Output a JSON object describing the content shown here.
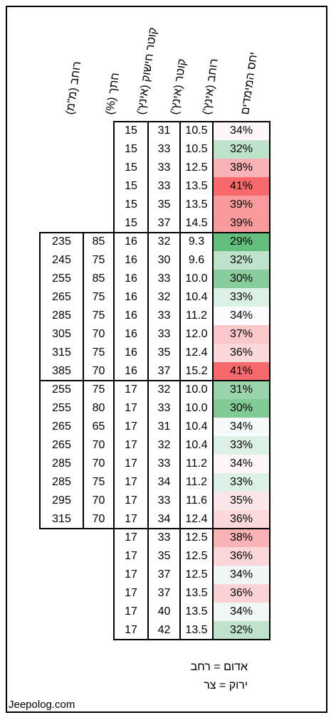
{
  "headers": {
    "ratio": "יחס המימדים",
    "rim_width_in": "רוחב (אינץ')",
    "diameter_in": "קוטר (אינץ')",
    "rim_diameter_in": "קוטר חישוק (אינץ')",
    "profile_pct": "חתך (%)",
    "width_mm": "רוחב (מ\"מ)"
  },
  "rows": [
    {
      "width_mm": "",
      "profile": "",
      "rim": "15",
      "diam": "31",
      "wid": "10.5",
      "ratio": "34%",
      "tone": 0.52
    },
    {
      "width_mm": "",
      "profile": "",
      "rim": "15",
      "diam": "33",
      "wid": "10.5",
      "ratio": "32%",
      "tone": 0.3
    },
    {
      "width_mm": "",
      "profile": "",
      "rim": "15",
      "diam": "33",
      "wid": "12.5",
      "ratio": "38%",
      "tone": 0.75
    },
    {
      "width_mm": "",
      "profile": "",
      "rim": "15",
      "diam": "33",
      "wid": "13.5",
      "ratio": "41%",
      "tone": 1.0
    },
    {
      "width_mm": "",
      "profile": "",
      "rim": "15",
      "diam": "35",
      "wid": "13.5",
      "ratio": "39%",
      "tone": 0.83
    },
    {
      "width_mm": "",
      "profile": "",
      "rim": "15",
      "diam": "37",
      "wid": "14.5",
      "ratio": "39%",
      "tone": 0.83
    },
    {
      "width_mm": "235",
      "profile": "85",
      "rim": "16",
      "diam": "32",
      "wid": "9.3",
      "ratio": "29%",
      "tone": 0.0
    },
    {
      "width_mm": "245",
      "profile": "75",
      "rim": "16",
      "diam": "30",
      "wid": "9.6",
      "ratio": "32%",
      "tone": 0.3
    },
    {
      "width_mm": "255",
      "profile": "85",
      "rim": "16",
      "diam": "33",
      "wid": "10.0",
      "ratio": "30%",
      "tone": 0.12
    },
    {
      "width_mm": "265",
      "profile": "75",
      "rim": "16",
      "diam": "32",
      "wid": "10.4",
      "ratio": "33%",
      "tone": 0.4
    },
    {
      "width_mm": "285",
      "profile": "75",
      "rim": "16",
      "diam": "33",
      "wid": "11.2",
      "ratio": "34%",
      "tone": 0.5
    },
    {
      "width_mm": "305",
      "profile": "70",
      "rim": "16",
      "diam": "33",
      "wid": "12.0",
      "ratio": "37%",
      "tone": 0.68
    },
    {
      "width_mm": "315",
      "profile": "75",
      "rim": "16",
      "diam": "35",
      "wid": "12.4",
      "ratio": "36%",
      "tone": 0.62
    },
    {
      "width_mm": "385",
      "profile": "70",
      "rim": "16",
      "diam": "37",
      "wid": "15.2",
      "ratio": "41%",
      "tone": 1.0
    },
    {
      "width_mm": "255",
      "profile": "75",
      "rim": "17",
      "diam": "32",
      "wid": "10.0",
      "ratio": "31%",
      "tone": 0.18
    },
    {
      "width_mm": "255",
      "profile": "80",
      "rim": "17",
      "diam": "33",
      "wid": "10.0",
      "ratio": "30%",
      "tone": 0.1
    },
    {
      "width_mm": "265",
      "profile": "65",
      "rim": "17",
      "diam": "31",
      "wid": "10.4",
      "ratio": "34%",
      "tone": 0.48
    },
    {
      "width_mm": "265",
      "profile": "70",
      "rim": "17",
      "diam": "32",
      "wid": "10.4",
      "ratio": "33%",
      "tone": 0.4
    },
    {
      "width_mm": "285",
      "profile": "70",
      "rim": "17",
      "diam": "33",
      "wid": "11.2",
      "ratio": "34%",
      "tone": 0.52
    },
    {
      "width_mm": "285",
      "profile": "75",
      "rim": "17",
      "diam": "34",
      "wid": "11.2",
      "ratio": "33%",
      "tone": 0.4
    },
    {
      "width_mm": "295",
      "profile": "70",
      "rim": "17",
      "diam": "33",
      "wid": "11.6",
      "ratio": "35%",
      "tone": 0.57
    },
    {
      "width_mm": "315",
      "profile": "70",
      "rim": "17",
      "diam": "34",
      "wid": "12.4",
      "ratio": "36%",
      "tone": 0.62
    },
    {
      "width_mm": "",
      "profile": "",
      "rim": "17",
      "diam": "33",
      "wid": "12.5",
      "ratio": "38%",
      "tone": 0.75
    },
    {
      "width_mm": "",
      "profile": "",
      "rim": "17",
      "diam": "35",
      "wid": "12.5",
      "ratio": "36%",
      "tone": 0.63
    },
    {
      "width_mm": "",
      "profile": "",
      "rim": "17",
      "diam": "37",
      "wid": "12.5",
      "ratio": "34%",
      "tone": 0.46
    },
    {
      "width_mm": "",
      "profile": "",
      "rim": "17",
      "diam": "37",
      "wid": "13.5",
      "ratio": "36%",
      "tone": 0.64
    },
    {
      "width_mm": "",
      "profile": "",
      "rim": "17",
      "diam": "40",
      "wid": "13.5",
      "ratio": "34%",
      "tone": 0.46
    },
    {
      "width_mm": "",
      "profile": "",
      "rim": "17",
      "diam": "42",
      "wid": "13.5",
      "ratio": "32%",
      "tone": 0.3
    }
  ],
  "legend": {
    "red": "אדום = רחב",
    "green": "ירוק = צר"
  },
  "brand": "Jeepolog.com",
  "colors": {
    "green": "#63be7b",
    "white": "#fcfcff",
    "red": "#f8696b"
  }
}
